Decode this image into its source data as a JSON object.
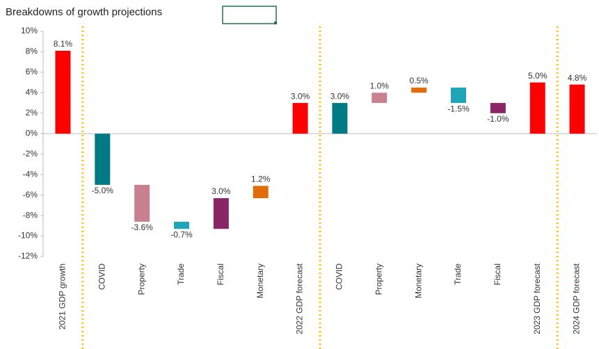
{
  "chart_data": {
    "type": "waterfall",
    "title": "Breakdowns of growth projections",
    "categories": [
      "2021 GDP growth",
      "COVID",
      "Property",
      "Trade",
      "Fiscal",
      "Monetary",
      "2022 GDP forecast",
      "COVID",
      "Property",
      "Monetary",
      "Trade",
      "Fiscal",
      "2023 GDP forecast",
      "2024 GDP forecast"
    ],
    "values": [
      8.1,
      -5.0,
      -3.6,
      -0.7,
      3.0,
      1.2,
      3.0,
      3.0,
      1.0,
      0.5,
      -1.5,
      -1.0,
      5.0,
      4.8
    ],
    "value_labels": [
      "8.1%",
      "-5.0%",
      "-3.6%",
      "-0.7%",
      "3.0%",
      "1.2%",
      "3.0%",
      "3.0%",
      "1.0%",
      "0.5%",
      "-1.5%",
      "-1.0%",
      "5.0%",
      "4.8%"
    ],
    "totals": [
      true,
      false,
      false,
      false,
      false,
      false,
      true,
      false,
      false,
      false,
      false,
      false,
      true,
      true
    ],
    "colors": [
      "#ff0000",
      "#007b86",
      "#c9808f",
      "#1ea5b8",
      "#8a2566",
      "#e36c0a",
      "#ff0000",
      "#007b86",
      "#c9808f",
      "#e36c0a",
      "#1ea5b8",
      "#8a2566",
      "#ff0000",
      "#ff0000"
    ],
    "ylim": [
      -12,
      10
    ],
    "yticks": [
      {
        "value": -12,
        "label": "-12%"
      },
      {
        "value": -10,
        "label": "-10%"
      },
      {
        "value": -8,
        "label": "-8%"
      },
      {
        "value": -6,
        "label": "-6%"
      },
      {
        "value": -4,
        "label": "-4%"
      },
      {
        "value": -2,
        "label": "-2%"
      },
      {
        "value": 0,
        "label": "0%"
      },
      {
        "value": 2,
        "label": "2%"
      },
      {
        "value": 4,
        "label": "4%"
      },
      {
        "value": 6,
        "label": "6%"
      },
      {
        "value": 8,
        "label": "8%"
      },
      {
        "value": 10,
        "label": "10%"
      }
    ]
  }
}
